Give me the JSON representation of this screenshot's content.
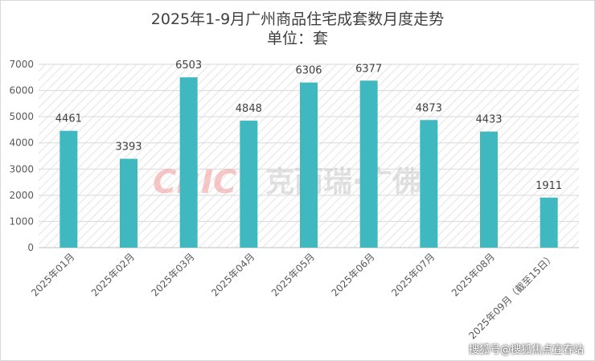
{
  "chart_data": {
    "type": "bar",
    "title": "2025年1-9月广州商品住宅成套数月度走势",
    "subtitle": "单位：套",
    "categories": [
      "2025年01月",
      "2025年02月",
      "2025年03月",
      "2025年04月",
      "2025年05月",
      "2025年06月",
      "2025年07月",
      "2025年08月",
      "2025年09月（截至15日）"
    ],
    "values": [
      4461,
      3393,
      6503,
      4848,
      6306,
      6377,
      4873,
      4433,
      1911
    ],
    "ylim": [
      0,
      7000
    ],
    "yticks": [
      0,
      1000,
      2000,
      3000,
      4000,
      5000,
      6000,
      7000
    ],
    "bar_color": "#3fb8bf",
    "grid": true,
    "background_pattern": "diagonal-hatch"
  },
  "watermark": {
    "logo": "CRIC",
    "text": "克而瑞·广佛"
  },
  "credit": "搜狐号@搜狐焦点宜春站"
}
